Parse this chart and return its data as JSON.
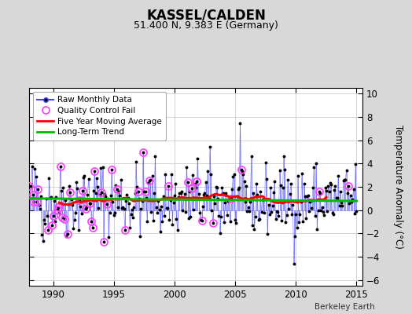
{
  "title": "KASSEL/CALDEN",
  "subtitle": "51.400 N, 9.383 E (Germany)",
  "ylabel": "Temperature Anomaly (°C)",
  "credit": "Berkeley Earth",
  "xlim": [
    1988.0,
    2015.5
  ],
  "ylim": [
    -6.5,
    10.5
  ],
  "yticks": [
    -6,
    -4,
    -2,
    0,
    2,
    4,
    6,
    8,
    10
  ],
  "xticks": [
    1990,
    1995,
    2000,
    2005,
    2010,
    2015
  ],
  "bg_color": "#d8d8d8",
  "plot_bg_color": "#ffffff",
  "raw_color": "#4444ff",
  "raw_dot_color": "#000000",
  "qc_fail_color": "#ff44ff",
  "moving_avg_color": "#ff0000",
  "trend_color": "#00bb00",
  "trend_intercept": 1.0,
  "trend_slope": -0.008,
  "start_year": 1988.0,
  "end_year": 2015.0,
  "seed": 42
}
